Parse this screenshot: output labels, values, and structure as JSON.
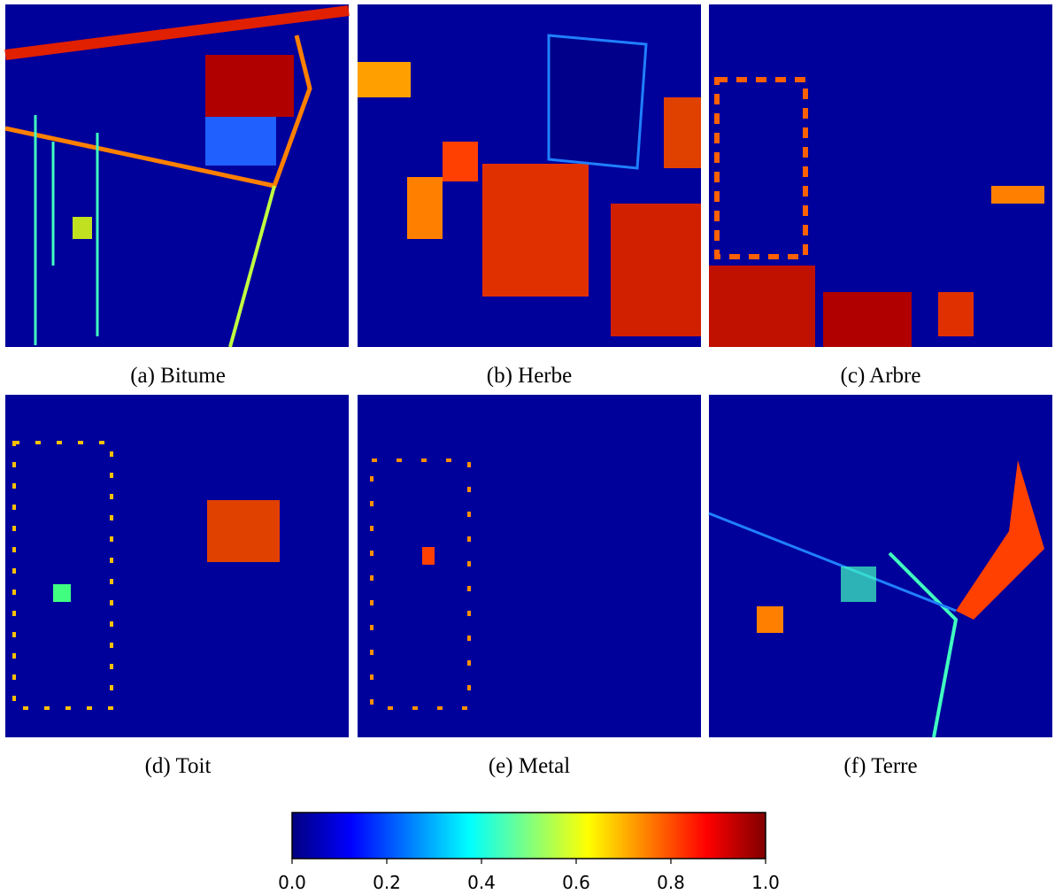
{
  "panels": [
    {
      "caption": "(a) Bitume"
    },
    {
      "caption": "(b) Herbe"
    },
    {
      "caption": "(c) Arbre"
    },
    {
      "caption": "(d) Toit"
    },
    {
      "caption": "(e) Metal"
    },
    {
      "caption": "(f) Terre"
    }
  ],
  "colorbar": {
    "lim": [
      0,
      1
    ],
    "ticks": [
      {
        "value": 0,
        "label": "0.0"
      },
      {
        "value": 0.2,
        "label": "0.2"
      },
      {
        "value": 0.4,
        "label": "0.4"
      },
      {
        "value": 0.6,
        "label": "0.6"
      },
      {
        "value": 0.8,
        "label": "0.8"
      },
      {
        "value": 1,
        "label": "1.0"
      }
    ]
  }
}
